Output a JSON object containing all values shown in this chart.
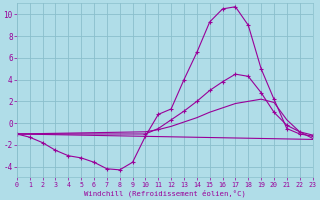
{
  "bg_color": "#b0dde8",
  "grid_color": "#8abfcc",
  "line_color": "#990099",
  "xlabel": "Windchill (Refroidissement éolien,°C)",
  "xlabel_color": "#990099",
  "tick_color": "#990099",
  "xlim": [
    0,
    23
  ],
  "ylim": [
    -5,
    11
  ],
  "yticks": [
    -4,
    -2,
    0,
    2,
    4,
    6,
    8,
    10
  ],
  "xticks": [
    0,
    1,
    2,
    3,
    4,
    5,
    6,
    7,
    8,
    9,
    10,
    11,
    12,
    13,
    14,
    15,
    16,
    17,
    18,
    19,
    20,
    21,
    22,
    23
  ],
  "series": [
    {
      "x": [
        0,
        1,
        2,
        3,
        4,
        5,
        6,
        7,
        8,
        9,
        10,
        11,
        12,
        13,
        14,
        15,
        16,
        17,
        18,
        19,
        20,
        21,
        22,
        23
      ],
      "y": [
        -1.0,
        -1.3,
        -1.8,
        -2.5,
        -3.0,
        -3.2,
        -3.6,
        -4.2,
        -4.3,
        -3.6,
        -1.2,
        0.8,
        1.3,
        4.0,
        6.5,
        9.3,
        10.5,
        10.7,
        9.0,
        5.0,
        2.2,
        -0.5,
        -1.0,
        -1.2
      ],
      "marker": true
    },
    {
      "x": [
        0,
        10,
        11,
        12,
        13,
        14,
        15,
        16,
        17,
        18,
        19,
        20,
        21,
        22,
        23
      ],
      "y": [
        -1.0,
        -1.0,
        -0.5,
        0.3,
        1.1,
        2.0,
        3.0,
        3.8,
        4.5,
        4.3,
        2.8,
        1.0,
        -0.2,
        -0.8,
        -1.1
      ],
      "marker": true
    },
    {
      "x": [
        0,
        10,
        11,
        12,
        13,
        14,
        15,
        16,
        17,
        18,
        19,
        20,
        21,
        22,
        23
      ],
      "y": [
        -1.0,
        -0.8,
        -0.6,
        -0.3,
        0.1,
        0.5,
        1.0,
        1.4,
        1.8,
        2.0,
        2.2,
        1.9,
        0.3,
        -0.8,
        -1.4
      ],
      "marker": false
    },
    {
      "x": [
        0,
        23
      ],
      "y": [
        -1.0,
        -1.5
      ],
      "marker": false
    }
  ]
}
